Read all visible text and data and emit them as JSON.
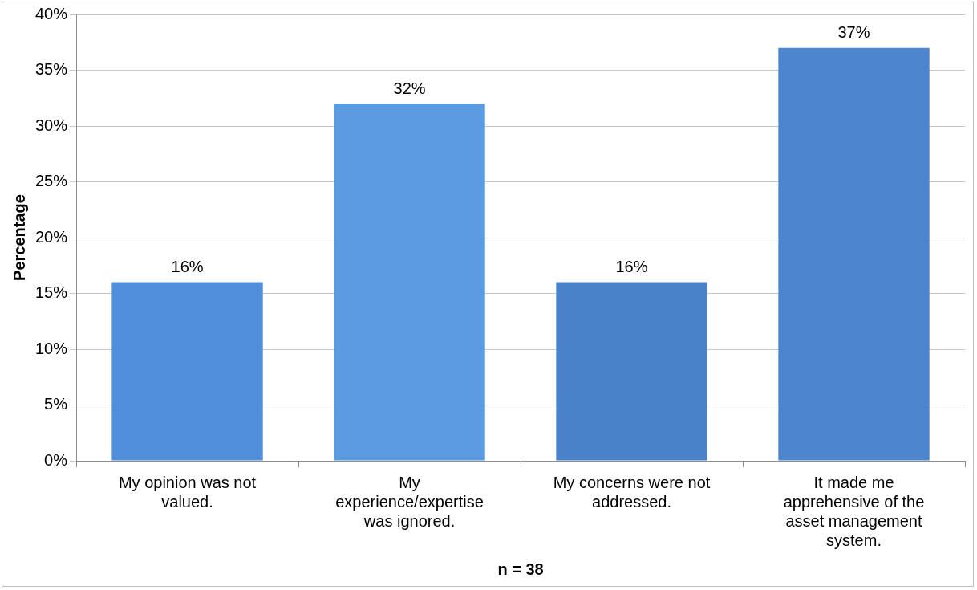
{
  "chart_data": {
    "type": "bar",
    "xlabel": "n = 38",
    "ylabel": "Percentage",
    "categories": [
      "My opinion was not valued.",
      "My experience/expertise was ignored.",
      "My concerns were not addressed.",
      "It made me apprehensive of the asset management system."
    ],
    "values": [
      16,
      32,
      16,
      37
    ],
    "colors": [
      "#4f8fdb",
      "#5a9be2",
      "#4a82ca",
      "#4d86cf"
    ],
    "value_labels": [
      "16%",
      "32%",
      "16%",
      "37%"
    ],
    "ylim": [
      0,
      40
    ],
    "yticks": [
      {
        "value": 0,
        "label": "0%"
      },
      {
        "value": 5,
        "label": "5%"
      },
      {
        "value": 10,
        "label": "10%"
      },
      {
        "value": 15,
        "label": "15%"
      },
      {
        "value": 20,
        "label": "20%"
      },
      {
        "value": 25,
        "label": "25%"
      },
      {
        "value": 30,
        "label": "30%"
      },
      {
        "value": 35,
        "label": "35%"
      },
      {
        "value": 40,
        "label": "40%"
      }
    ],
    "grid": "y"
  }
}
